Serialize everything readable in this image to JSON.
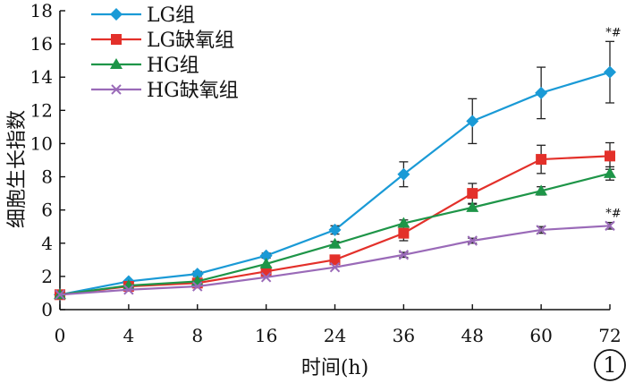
{
  "chart_data": {
    "type": "line",
    "title": "",
    "xlabel": "时间(h)",
    "ylabel": "细胞生长指数",
    "ylim": [
      0,
      18
    ],
    "yticks": [
      0,
      2,
      4,
      6,
      8,
      10,
      12,
      14,
      16,
      18
    ],
    "categories": [
      "0",
      "4",
      "8",
      "16",
      "24",
      "36",
      "48",
      "60",
      "72"
    ],
    "grid": false,
    "legend_position": "top-left",
    "panel_label": "1",
    "series": [
      {
        "name": "LG组",
        "color": "#1a9ad6",
        "marker": "diamond",
        "values": [
          0.9,
          1.7,
          2.15,
          3.25,
          4.8,
          8.15,
          11.35,
          13.05,
          14.3
        ],
        "errors": [
          0.1,
          0.1,
          0.15,
          0.15,
          0.25,
          0.75,
          1.35,
          1.55,
          1.85
        ]
      },
      {
        "name": "LG缺氧组",
        "color": "#e3302a",
        "marker": "square",
        "values": [
          0.9,
          1.4,
          1.6,
          2.3,
          3.0,
          4.6,
          7.0,
          9.05,
          9.25
        ],
        "errors": [
          0.1,
          0.1,
          0.1,
          0.15,
          0.2,
          0.45,
          0.6,
          0.85,
          0.8
        ]
      },
      {
        "name": "HG组",
        "color": "#1e9548",
        "marker": "triangle",
        "values": [
          0.9,
          1.45,
          1.7,
          2.75,
          3.95,
          5.2,
          6.15,
          7.15,
          8.2
        ],
        "errors": [
          0.1,
          0.1,
          0.1,
          0.1,
          0.15,
          0.2,
          0.2,
          0.25,
          0.4
        ]
      },
      {
        "name": "HG缺氧组",
        "color": "#9a6ab8",
        "marker": "x",
        "values": [
          0.9,
          1.2,
          1.4,
          1.95,
          2.55,
          3.3,
          4.15,
          4.8,
          5.05
        ],
        "errors": [
          0.1,
          0.1,
          0.1,
          0.1,
          0.1,
          0.15,
          0.15,
          0.2,
          0.2
        ]
      }
    ],
    "annotations": [
      {
        "text": "*#",
        "category": "72",
        "series": "LG组"
      },
      {
        "text": "*#",
        "category": "72",
        "series": "HG缺氧组"
      }
    ]
  }
}
